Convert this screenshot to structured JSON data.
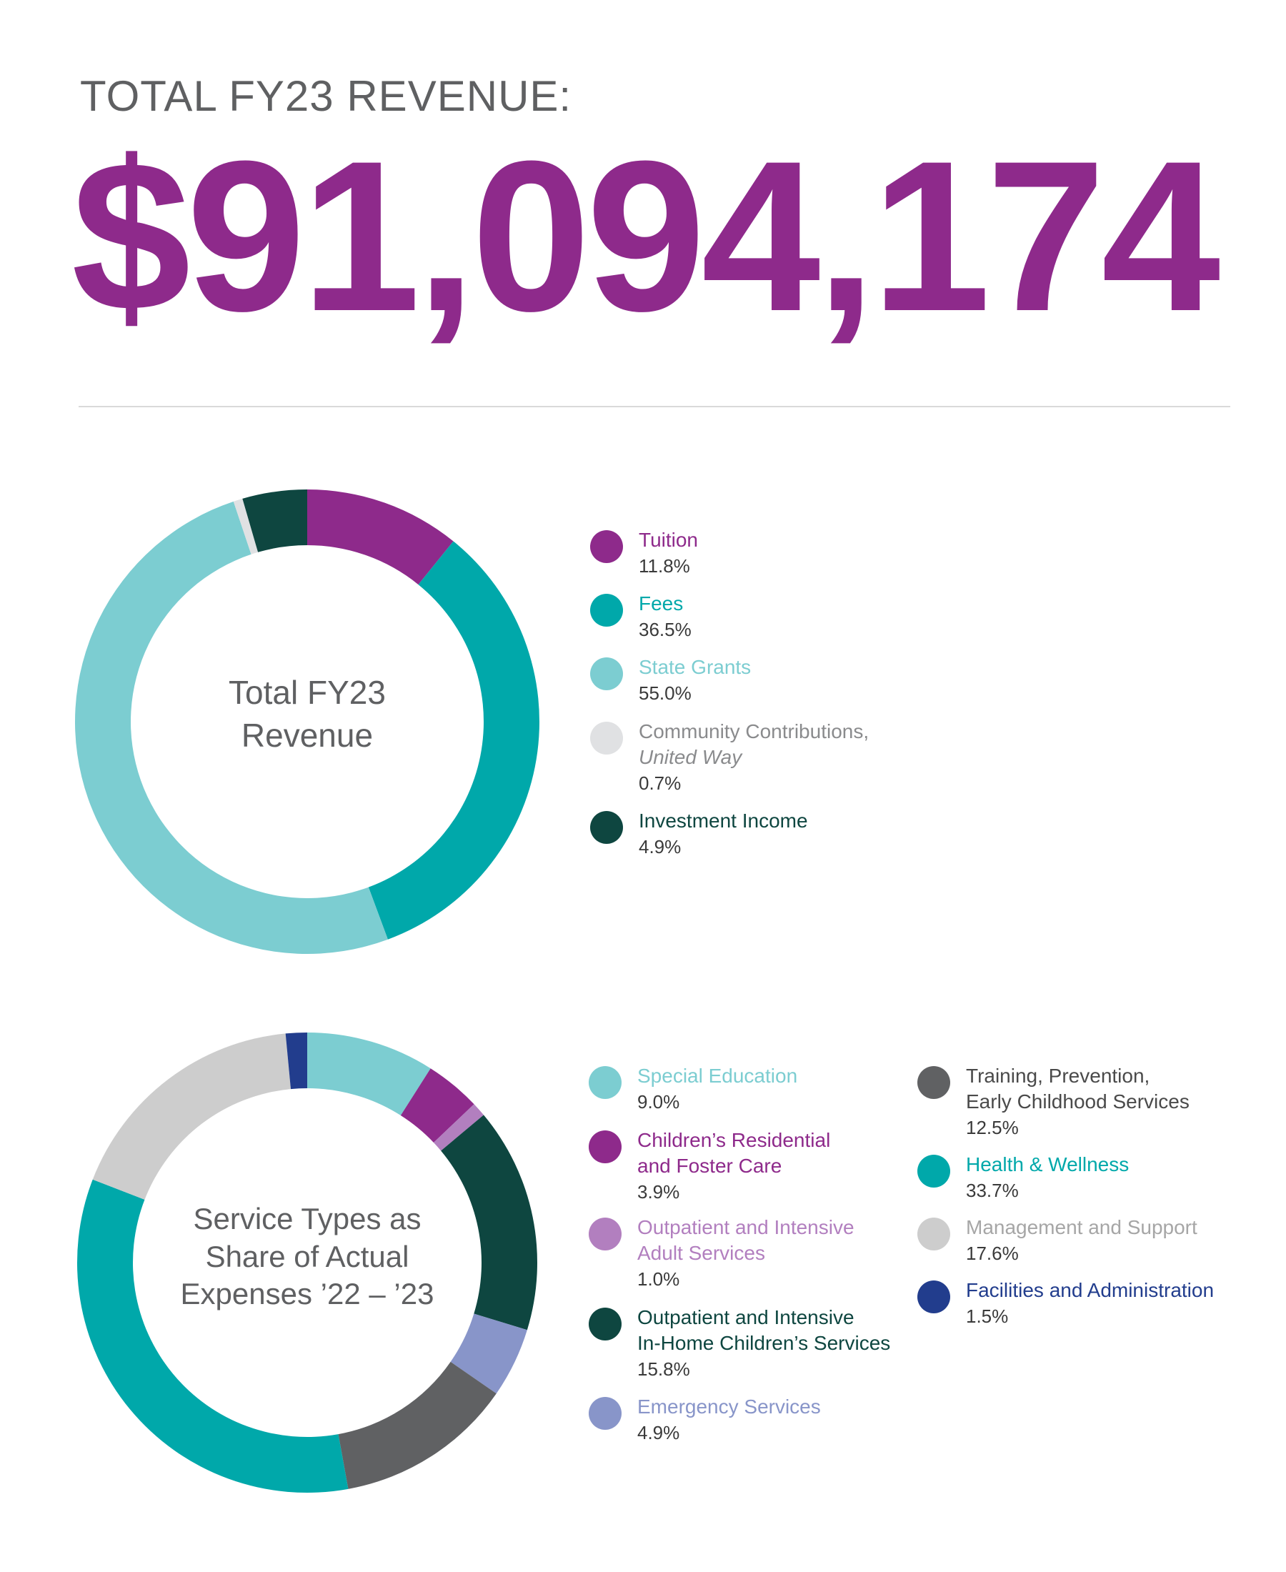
{
  "header": {
    "label": "TOTAL FY23 REVENUE:",
    "total": "$91,094,174"
  },
  "chart_data": [
    {
      "type": "pie",
      "title": "Total FY23 Revenue",
      "series": [
        {
          "name": "Tuition",
          "value": 11.8,
          "value_label": "11.8%",
          "color": "#8e2a8b"
        },
        {
          "name": "Fees",
          "value": 36.5,
          "value_label": "36.5%",
          "color": "#00a8aa"
        },
        {
          "name": "State Grants",
          "value": 55.0,
          "value_label": "55.0%",
          "color": "#7ccdd1"
        },
        {
          "name": "Community Contributions,",
          "sub": "United Way",
          "value": 0.7,
          "value_label": "0.7%",
          "color": "#e0e1e3",
          "label_color": "#8a8b8d"
        },
        {
          "name": "Investment Income",
          "value": 4.9,
          "value_label": "4.9%",
          "color": "#0e4640"
        }
      ]
    },
    {
      "type": "pie",
      "title_lines": [
        "Service Types as",
        "Share of Actual",
        "Expenses ’22 – ’23"
      ],
      "series": [
        {
          "name": "Special Education",
          "value": 9.0,
          "value_label": "9.0%",
          "color": "#7ccdd1"
        },
        {
          "name": "Children’s Residential",
          "sub": "and Foster Care",
          "value": 3.9,
          "value_label": "3.9%",
          "color": "#8e2a8b"
        },
        {
          "name": "Outpatient and Intensive",
          "sub": "Adult Services",
          "value": 1.0,
          "value_label": "1.0%",
          "color": "#b27fbf"
        },
        {
          "name": "Outpatient and Intensive",
          "sub": "In-Home Children’s Services",
          "value": 15.8,
          "value_label": "15.8%",
          "color": "#0e4640"
        },
        {
          "name": "Emergency Services",
          "value": 4.9,
          "value_label": "4.9%",
          "color": "#8895c9"
        },
        {
          "name": "Training, Prevention,",
          "sub": "Early Childhood Services",
          "value": 12.5,
          "value_label": "12.5%",
          "color": "#606163",
          "label_color": "#4a4a4a"
        },
        {
          "name": "Health & Wellness",
          "value": 33.7,
          "value_label": "33.7%",
          "color": "#00a8aa"
        },
        {
          "name": "Management and Support",
          "value": 17.6,
          "value_label": "17.6%",
          "color": "#cdcdcd",
          "label_color": "#a6a6a6"
        },
        {
          "name": "Facilities and Administration",
          "value": 1.5,
          "value_label": "1.5%",
          "color": "#223d8d"
        }
      ]
    }
  ]
}
